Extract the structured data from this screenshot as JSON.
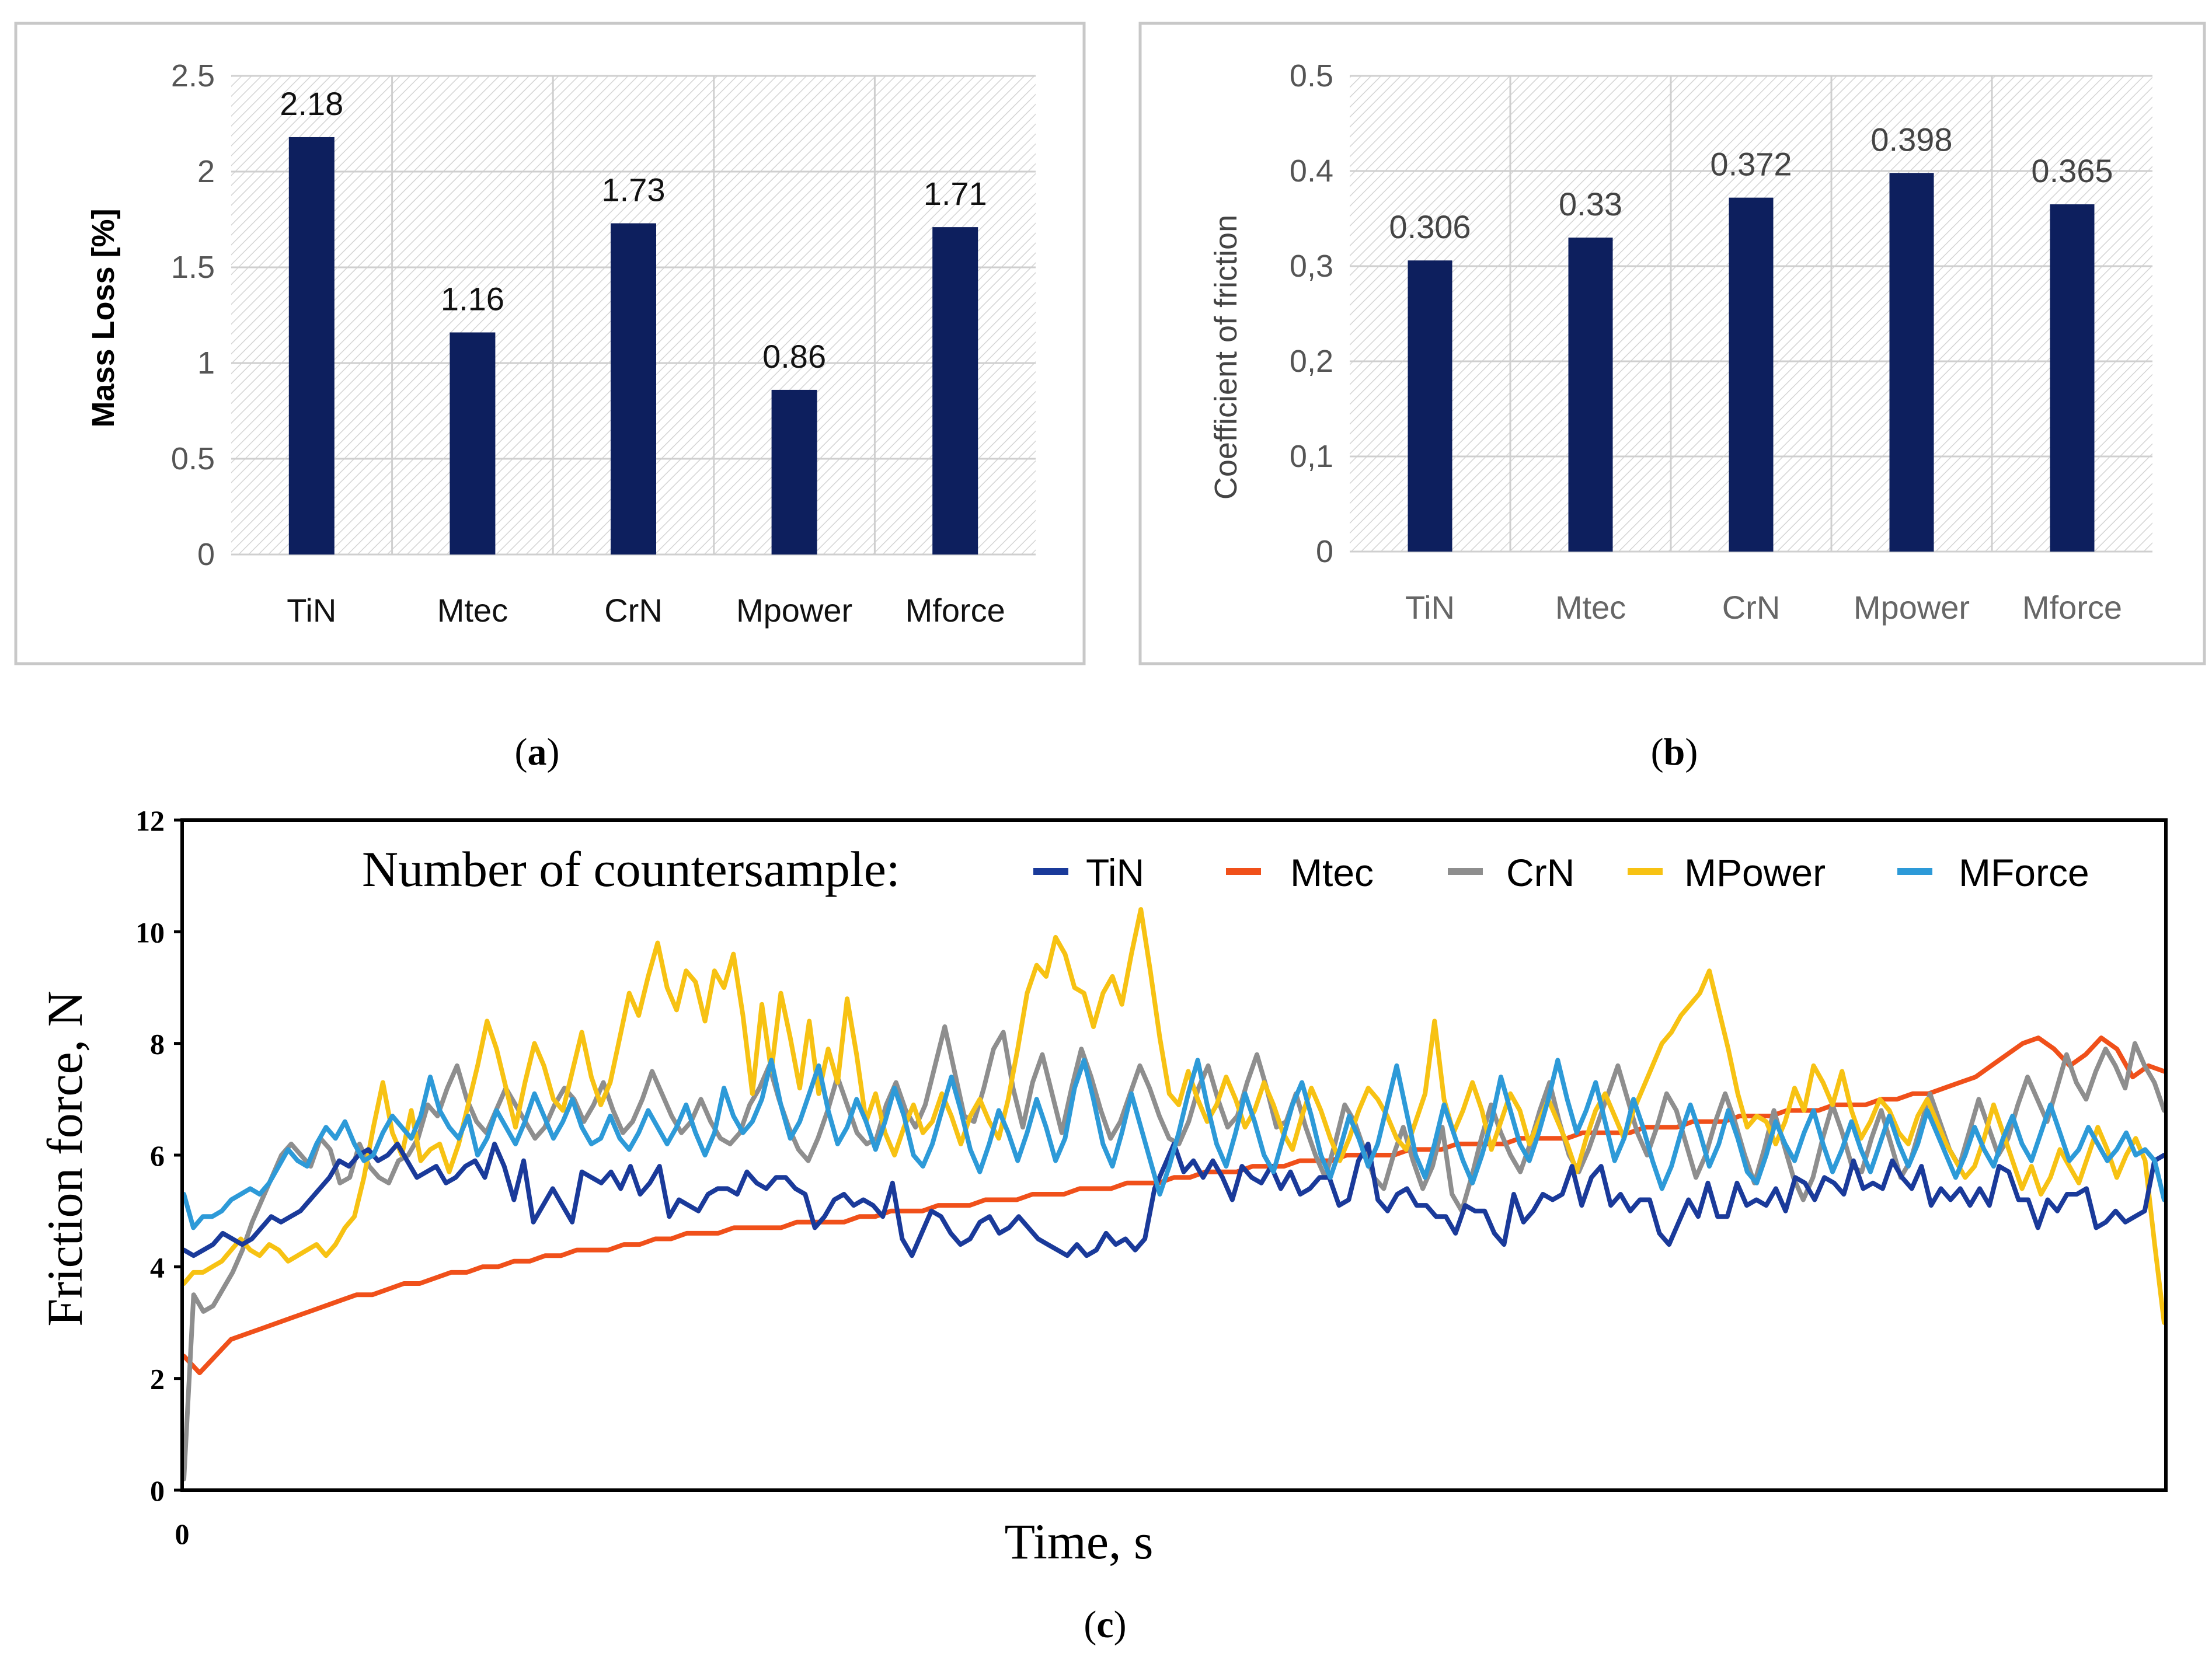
{
  "colors": {
    "bar": "#0d1f5e",
    "hatch": "#d0d0d0",
    "panel_border": "#c8c8c8",
    "TiN": "#1a3a9a",
    "Mtec": "#f0501a",
    "CrN": "#8e8e8e",
    "MPower": "#f7c213",
    "MForce": "#2d9ad8"
  },
  "captions": {
    "a_open": "(",
    "a_letter": "a",
    "a_close": ")",
    "b_open": "(",
    "b_letter": "b",
    "b_close": ")",
    "c_open": "(",
    "c_letter": "c",
    "c_close": ")"
  },
  "chart_data": [
    {
      "id": "a",
      "type": "bar",
      "title": "",
      "xlabel": "",
      "ylabel": "Mass Loss [%]",
      "categories": [
        "TiN",
        "Mtec",
        "CrN",
        "Mpower",
        "Mforce"
      ],
      "values": [
        2.18,
        1.16,
        1.73,
        0.86,
        1.71
      ],
      "data_labels": [
        "2.18",
        "1.16",
        "1.73",
        "0.86",
        "1.71"
      ],
      "ylim": [
        0,
        2.5
      ],
      "yticks": [
        0,
        0.5,
        1,
        1.5,
        2,
        2.5
      ],
      "ytick_labels": [
        "0",
        "0.5",
        "1",
        "1.5",
        "2",
        "2.5"
      ],
      "grid": true
    },
    {
      "id": "b",
      "type": "bar",
      "title": "",
      "xlabel": "",
      "ylabel": "Coefficient of friction",
      "categories": [
        "TiN",
        "Mtec",
        "CrN",
        "Mpower",
        "Mforce"
      ],
      "values": [
        0.306,
        0.33,
        0.372,
        0.398,
        0.365
      ],
      "data_labels": [
        "0.306",
        "0.33",
        "0.372",
        "0.398",
        "0.365"
      ],
      "ylim": [
        0,
        0.5
      ],
      "yticks": [
        0,
        0.1,
        0.2,
        0.3,
        0.4,
        0.5
      ],
      "ytick_labels": [
        "0",
        "0,1",
        "0,2",
        "0,3",
        "0.4",
        "0.5"
      ],
      "grid": true
    },
    {
      "id": "c",
      "type": "line",
      "title": "",
      "xlabel": "Time, s",
      "ylabel": "Friction force, N",
      "xlim": [
        0,
        360
      ],
      "ylim": [
        0,
        12
      ],
      "yticks": [
        0,
        2,
        4,
        6,
        8,
        10,
        12
      ],
      "ytick_labels": [
        "0",
        "2",
        "4",
        "6",
        "8",
        "10",
        "12"
      ],
      "xtick_labels": [
        "0"
      ],
      "legend_title": "Number of countersample:",
      "legend_position": "top",
      "series": [
        {
          "name": "TiN",
          "values": [
            4.3,
            4.2,
            4.3,
            4.4,
            4.6,
            4.5,
            4.4,
            4.5,
            4.7,
            4.9,
            4.8,
            4.9,
            5.0,
            5.2,
            5.4,
            5.6,
            5.9,
            5.8,
            6.0,
            6.1,
            5.9,
            6.0,
            6.2,
            5.9,
            5.6,
            5.7,
            5.8,
            5.5,
            5.6,
            5.8,
            5.9,
            5.6,
            6.2,
            5.8,
            5.2,
            5.9,
            4.8,
            5.1,
            5.4,
            5.1,
            4.8,
            5.7,
            5.6,
            5.5,
            5.7,
            5.4,
            5.8,
            5.3,
            5.5,
            5.8,
            4.9,
            5.2,
            5.1,
            5.0,
            5.3,
            5.4,
            5.4,
            5.3,
            5.7,
            5.5,
            5.4,
            5.6,
            5.6,
            5.4,
            5.3,
            4.7,
            4.9,
            5.2,
            5.3,
            5.1,
            5.2,
            5.1,
            4.9,
            5.5,
            4.5,
            4.2,
            4.6,
            5.0,
            4.9,
            4.6,
            4.4,
            4.5,
            4.8,
            4.9,
            4.6,
            4.7,
            4.9,
            4.7,
            4.5,
            4.4,
            4.3,
            4.2,
            4.4,
            4.2,
            4.3,
            4.6,
            4.4,
            4.5,
            4.3,
            4.5,
            5.4,
            5.8,
            6.2,
            5.7,
            5.9,
            5.6,
            5.9,
            5.6,
            5.2,
            5.8,
            5.6,
            5.5,
            5.8,
            5.4,
            5.7,
            5.3,
            5.4,
            5.6,
            5.6,
            5.1,
            5.2,
            5.9,
            6.2,
            5.2,
            5.0,
            5.3,
            5.4,
            5.1,
            5.1,
            4.9,
            4.9,
            4.6,
            5.1,
            5.0,
            5.0,
            4.6,
            4.4,
            5.3,
            4.8,
            5.0,
            5.3,
            5.2,
            5.3,
            5.8,
            5.1,
            5.6,
            5.8,
            5.1,
            5.3,
            5.0,
            5.2,
            5.2,
            4.6,
            4.4,
            4.8,
            5.2,
            4.9,
            5.5,
            4.9,
            4.9,
            5.5,
            5.1,
            5.2,
            5.1,
            5.4,
            5.0,
            5.6,
            5.5,
            5.2,
            5.6,
            5.5,
            5.3,
            5.9,
            5.4,
            5.5,
            5.4,
            5.9,
            5.6,
            5.4,
            5.8,
            5.1,
            5.4,
            5.2,
            5.4,
            5.1,
            5.4,
            5.1,
            5.8,
            5.7,
            5.2,
            5.2,
            4.7,
            5.2,
            5.0,
            5.3,
            5.3,
            5.4,
            4.7,
            4.8,
            5.0,
            4.8,
            4.9,
            5.0,
            5.9,
            6.0
          ]
        },
        {
          "name": "Mtec",
          "values": [
            2.4,
            2.1,
            2.4,
            2.7,
            2.8,
            2.9,
            3.0,
            3.1,
            3.2,
            3.3,
            3.4,
            3.5,
            3.5,
            3.6,
            3.7,
            3.7,
            3.8,
            3.9,
            3.9,
            4.0,
            4.0,
            4.1,
            4.1,
            4.2,
            4.2,
            4.3,
            4.3,
            4.3,
            4.4,
            4.4,
            4.5,
            4.5,
            4.6,
            4.6,
            4.6,
            4.7,
            4.7,
            4.7,
            4.7,
            4.8,
            4.8,
            4.8,
            4.8,
            4.9,
            4.9,
            5.0,
            5.0,
            5.0,
            5.1,
            5.1,
            5.1,
            5.2,
            5.2,
            5.2,
            5.3,
            5.3,
            5.3,
            5.4,
            5.4,
            5.4,
            5.5,
            5.5,
            5.5,
            5.6,
            5.6,
            5.7,
            5.7,
            5.7,
            5.8,
            5.8,
            5.8,
            5.9,
            5.9,
            5.9,
            6.0,
            6.0,
            6.0,
            6.0,
            6.1,
            6.1,
            6.1,
            6.2,
            6.2,
            6.2,
            6.2,
            6.3,
            6.3,
            6.3,
            6.3,
            6.4,
            6.4,
            6.4,
            6.4,
            6.5,
            6.5,
            6.5,
            6.6,
            6.6,
            6.6,
            6.7,
            6.7,
            6.7,
            6.8,
            6.8,
            6.8,
            6.9,
            6.9,
            6.9,
            7.0,
            7.0,
            7.1,
            7.1,
            7.2,
            7.3,
            7.4,
            7.6,
            7.8,
            8.0,
            8.1,
            7.9,
            7.6,
            7.8,
            8.1,
            7.9,
            7.4,
            7.6,
            7.5
          ]
        },
        {
          "name": "CrN",
          "values": [
            0.2,
            3.5,
            3.2,
            3.3,
            3.6,
            3.9,
            4.3,
            4.8,
            5.2,
            5.6,
            6.0,
            6.2,
            6.0,
            5.8,
            6.3,
            6.1,
            5.5,
            5.6,
            6.2,
            5.8,
            5.6,
            5.5,
            5.9,
            6.0,
            6.3,
            6.9,
            6.7,
            7.2,
            7.6,
            7.0,
            6.6,
            6.4,
            6.8,
            7.2,
            6.9,
            6.6,
            6.3,
            6.5,
            6.9,
            7.2,
            7.0,
            6.6,
            6.9,
            7.3,
            6.8,
            6.4,
            6.6,
            7.0,
            7.5,
            7.1,
            6.7,
            6.4,
            6.6,
            7.0,
            6.6,
            6.3,
            6.2,
            6.4,
            6.9,
            7.2,
            7.6,
            7.0,
            6.5,
            6.1,
            5.9,
            6.3,
            6.8,
            7.4,
            6.9,
            6.4,
            6.2,
            6.3,
            6.9,
            7.3,
            6.8,
            6.5,
            6.9,
            7.6,
            8.3,
            7.5,
            6.7,
            6.6,
            7.2,
            7.9,
            8.2,
            7.2,
            6.5,
            7.3,
            7.8,
            7.1,
            6.4,
            7.2,
            7.9,
            7.4,
            6.8,
            6.3,
            6.6,
            7.1,
            7.6,
            7.2,
            6.7,
            6.3,
            6.2,
            6.6,
            7.2,
            7.6,
            7.0,
            6.5,
            6.7,
            7.3,
            7.8,
            7.2,
            6.5,
            6.6,
            7.1,
            6.5,
            6.0,
            5.6,
            6.2,
            6.9,
            6.6,
            6.1,
            5.6,
            5.4,
            6.0,
            6.5,
            5.9,
            5.4,
            5.8,
            6.5,
            5.3,
            5.0,
            5.6,
            6.3,
            6.9,
            6.4,
            6.0,
            5.7,
            6.2,
            6.8,
            7.3,
            6.6,
            6.0,
            5.7,
            6.1,
            6.6,
            7.1,
            7.6,
            7.0,
            6.4,
            6.0,
            6.5,
            7.1,
            6.8,
            6.2,
            5.6,
            6.0,
            6.6,
            7.1,
            6.6,
            6.0,
            5.5,
            6.1,
            6.8,
            6.2,
            5.6,
            5.2,
            5.6,
            6.3,
            6.9,
            6.4,
            5.8,
            5.7,
            6.3,
            6.8,
            6.2,
            5.6,
            5.9,
            6.5,
            7.1,
            6.6,
            6.1,
            5.8,
            6.4,
            7.0,
            6.5,
            6.0,
            6.3,
            6.9,
            7.4,
            7.0,
            6.6,
            7.2,
            7.8,
            7.3,
            7.0,
            7.5,
            7.9,
            7.6,
            7.2,
            8.0,
            7.6,
            7.3,
            6.8
          ]
        },
        {
          "name": "MPower",
          "values": [
            3.7,
            3.9,
            3.9,
            4.0,
            4.1,
            4.3,
            4.5,
            4.3,
            4.2,
            4.4,
            4.3,
            4.1,
            4.2,
            4.3,
            4.4,
            4.2,
            4.4,
            4.7,
            4.9,
            5.6,
            6.5,
            7.3,
            6.4,
            6.0,
            6.8,
            5.9,
            6.1,
            6.2,
            5.7,
            6.2,
            6.9,
            7.6,
            8.4,
            7.9,
            7.2,
            6.5,
            7.3,
            8.0,
            7.6,
            7.0,
            6.8,
            7.5,
            8.2,
            7.4,
            6.9,
            7.3,
            8.1,
            8.9,
            8.5,
            9.2,
            9.8,
            9.0,
            8.6,
            9.3,
            9.1,
            8.4,
            9.3,
            9.0,
            9.6,
            8.5,
            7.1,
            8.7,
            7.5,
            8.9,
            8.1,
            7.2,
            8.4,
            7.1,
            7.9,
            7.3,
            8.8,
            7.8,
            6.6,
            7.1,
            6.4,
            6.0,
            6.5,
            6.9,
            6.4,
            6.6,
            7.1,
            6.7,
            6.2,
            6.7,
            7.0,
            6.6,
            6.3,
            7.0,
            7.9,
            8.9,
            9.4,
            9.2,
            9.9,
            9.6,
            9.0,
            8.9,
            8.3,
            8.9,
            9.2,
            8.7,
            9.6,
            10.4,
            9.3,
            8.1,
            7.1,
            6.9,
            7.5,
            7.0,
            6.6,
            6.9,
            7.4,
            7.0,
            6.5,
            6.8,
            7.3,
            6.9,
            6.4,
            6.1,
            6.7,
            7.2,
            6.8,
            6.3,
            5.9,
            6.3,
            6.8,
            7.2,
            7.0,
            6.7,
            6.3,
            6.1,
            6.6,
            7.1,
            8.4,
            7.0,
            6.4,
            6.8,
            7.3,
            6.8,
            6.1,
            6.6,
            7.1,
            6.8,
            6.2,
            6.6,
            7.0,
            6.6,
            6.2,
            5.7,
            6.3,
            6.8,
            7.1,
            6.7,
            6.3,
            6.8,
            7.2,
            7.6,
            8.0,
            8.2,
            8.5,
            8.7,
            8.9,
            9.3,
            8.6,
            7.9,
            7.1,
            6.5,
            6.7,
            6.6,
            6.2,
            6.6,
            7.2,
            6.8,
            7.6,
            7.3,
            6.9,
            7.5,
            6.8,
            6.3,
            6.6,
            7.0,
            6.8,
            6.4,
            6.2,
            6.7,
            7.0,
            6.6,
            6.2,
            5.9,
            5.6,
            5.8,
            6.3,
            6.9,
            6.4,
            5.9,
            5.4,
            5.8,
            5.3,
            5.6,
            6.1,
            5.8,
            5.5,
            6.0,
            6.5,
            6.1,
            5.6,
            6.0,
            6.3,
            5.9,
            4.4,
            3.0
          ]
        },
        {
          "name": "MForce",
          "values": [
            5.3,
            4.7,
            4.9,
            4.9,
            5.0,
            5.2,
            5.3,
            5.4,
            5.3,
            5.5,
            5.8,
            6.1,
            5.9,
            5.8,
            6.2,
            6.5,
            6.3,
            6.6,
            6.2,
            5.9,
            6.0,
            6.4,
            6.7,
            6.5,
            6.3,
            6.7,
            7.4,
            6.8,
            6.5,
            6.3,
            6.7,
            6.0,
            6.3,
            6.8,
            6.5,
            6.2,
            6.6,
            7.1,
            6.7,
            6.3,
            6.6,
            7.0,
            6.5,
            6.2,
            6.3,
            6.7,
            6.3,
            6.1,
            6.4,
            6.8,
            6.5,
            6.2,
            6.5,
            6.9,
            6.4,
            6.0,
            6.4,
            7.2,
            6.7,
            6.4,
            6.6,
            7.0,
            7.7,
            6.9,
            6.3,
            6.6,
            7.1,
            7.6,
            6.8,
            6.2,
            6.5,
            7.0,
            6.6,
            6.1,
            6.6,
            7.2,
            6.7,
            6.0,
            5.8,
            6.2,
            6.8,
            7.4,
            6.8,
            6.1,
            5.7,
            6.2,
            6.8,
            6.4,
            5.9,
            6.4,
            7.0,
            6.5,
            5.9,
            6.3,
            7.2,
            7.7,
            7.0,
            6.2,
            5.8,
            6.4,
            7.1,
            6.5,
            5.9,
            5.3,
            5.8,
            6.4,
            7.1,
            7.7,
            6.9,
            6.2,
            5.8,
            6.4,
            7.1,
            6.6,
            6.0,
            5.7,
            6.3,
            6.9,
            7.3,
            6.7,
            6.0,
            5.6,
            6.1,
            6.7,
            6.3,
            5.8,
            6.2,
            6.9,
            7.6,
            6.8,
            6.0,
            5.6,
            6.2,
            6.9,
            6.4,
            5.9,
            5.5,
            6.0,
            6.6,
            7.4,
            6.8,
            6.2,
            5.9,
            6.4,
            7.0,
            7.7,
            7.0,
            6.4,
            6.8,
            7.3,
            6.6,
            5.9,
            6.3,
            7.0,
            6.5,
            5.9,
            5.4,
            5.8,
            6.4,
            6.9,
            6.4,
            5.8,
            6.2,
            6.8,
            6.3,
            5.7,
            5.5,
            6.0,
            6.6,
            6.2,
            5.9,
            6.4,
            6.8,
            6.2,
            5.7,
            6.1,
            6.6,
            6.1,
            5.7,
            6.2,
            6.7,
            6.2,
            5.8,
            6.2,
            6.8,
            6.4,
            6.0,
            5.6,
            6.0,
            6.5,
            6.1,
            5.8,
            6.3,
            6.7,
            6.2,
            5.9,
            6.4,
            6.9,
            6.4,
            5.9,
            6.1,
            6.5,
            6.2,
            5.9,
            6.1,
            6.4,
            6.0,
            6.1,
            5.9,
            5.2
          ]
        }
      ]
    }
  ]
}
